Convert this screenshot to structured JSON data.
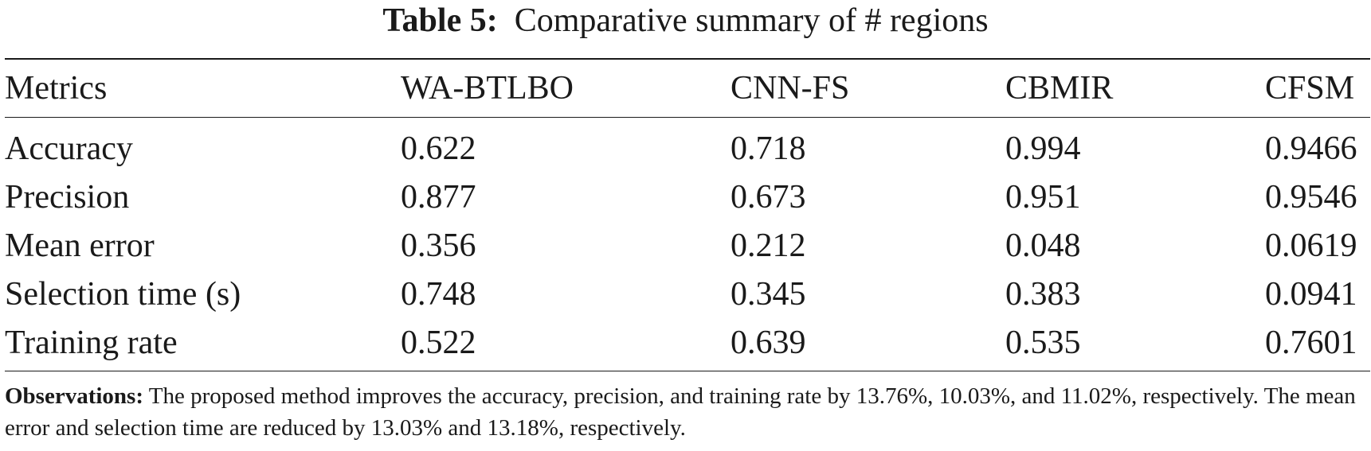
{
  "caption": {
    "label": "Table 5:",
    "text": "Comparative summary of # regions"
  },
  "table": {
    "headers": [
      "Metrics",
      "WA-BTLBO",
      "CNN-FS",
      "CBMIR",
      "CFSM"
    ],
    "rows": [
      [
        "Accuracy",
        "0.622",
        "0.718",
        "0.994",
        "0.9466"
      ],
      [
        "Precision",
        "0.877",
        "0.673",
        "0.951",
        "0.9546"
      ],
      [
        "Mean error",
        "0.356",
        "0.212",
        "0.048",
        "0.0619"
      ],
      [
        "Selection time (s)",
        "0.748",
        "0.345",
        "0.383",
        "0.0941"
      ],
      [
        "Training rate",
        "0.522",
        "0.639",
        "0.535",
        "0.7601"
      ]
    ]
  },
  "notes": {
    "label": "Observations:",
    "text": "The proposed method improves the accuracy, precision, and training rate by 13.76%, 10.03%, and 11.02%, respectively. The mean error and selection time are reduced by 13.03% and 13.18%, respectively."
  }
}
